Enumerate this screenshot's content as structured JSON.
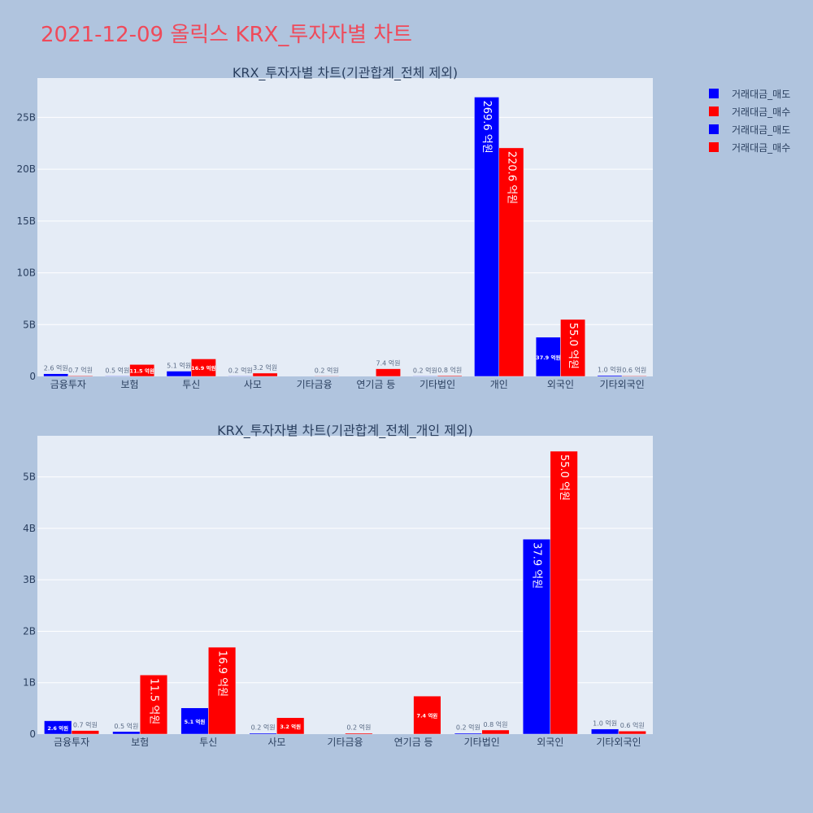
{
  "title": "2021-12-09 올릭스 KRX_투자자별 차트",
  "colors": {
    "sell": "#0000ff",
    "buy": "#ff0000",
    "plot_bg": "#e5ecf6",
    "page_bg": "#b0c4de",
    "title": "#ef4a5a"
  },
  "legend": [
    {
      "label": "거래대금_매도",
      "color": "#0000ff"
    },
    {
      "label": "거래대금_매수",
      "color": "#ff0000"
    },
    {
      "label": "거래대금_매도",
      "color": "#0000ff"
    },
    {
      "label": "거래대금_매수",
      "color": "#ff0000"
    }
  ],
  "chart_data": [
    {
      "type": "bar",
      "title": "KRX_투자자별 차트(기관합계_전체 제외)",
      "categories": [
        "금융투자",
        "보험",
        "투신",
        "사모",
        "기타금융",
        "연기금 등",
        "기타법인",
        "개인",
        "외국인",
        "기타외국인"
      ],
      "ylim": [
        0,
        28.8
      ],
      "y_ticks": [
        0,
        5,
        10,
        15,
        20,
        25
      ],
      "y_tick_labels": [
        "0",
        "5B",
        "10B",
        "15B",
        "20B",
        "25B"
      ],
      "series": [
        {
          "name": "거래대금_매도",
          "values": [
            0.26,
            0.05,
            0.51,
            0.02,
            null,
            null,
            0.02,
            26.96,
            3.79,
            0.1
          ],
          "labels": [
            "2.6 억원",
            "0.5 억원",
            "5.1 억원",
            "0.2 억원",
            "",
            "",
            "0.2 억원",
            "269.6 억원",
            "37.9 억원",
            "1.0 억원"
          ]
        },
        {
          "name": "거래대금_매수",
          "values": [
            0.07,
            1.15,
            1.69,
            0.32,
            0.02,
            0.74,
            0.08,
            22.06,
            5.5,
            0.06
          ],
          "labels": [
            "0.7 억원",
            "11.5 억원",
            "16.9 억원",
            "3.2 억원",
            "0.2 억원",
            "7.4 억원",
            "0.8 억원",
            "220.6 억원",
            "55.0 억원",
            "0.6 억원"
          ]
        }
      ]
    },
    {
      "type": "bar",
      "title": "KRX_투자자별 차트(기관합계_전체_개인 제외)",
      "categories": [
        "금융투자",
        "보험",
        "투신",
        "사모",
        "기타금융",
        "연기금 등",
        "기타법인",
        "외국인",
        "기타외국인"
      ],
      "ylim": [
        0,
        5.8
      ],
      "y_ticks": [
        0,
        1,
        2,
        3,
        4,
        5
      ],
      "y_tick_labels": [
        "0",
        "1B",
        "2B",
        "3B",
        "4B",
        "5B"
      ],
      "series": [
        {
          "name": "거래대금_매도",
          "values": [
            0.26,
            0.05,
            0.51,
            0.02,
            null,
            null,
            0.02,
            3.79,
            0.1
          ],
          "labels": [
            "2.6 억원",
            "0.5 억원",
            "5.1 억원",
            "0.2 억원",
            "",
            "",
            "0.2 억원",
            "37.9 억원",
            "1.0 억원"
          ]
        },
        {
          "name": "거래대금_매수",
          "values": [
            0.07,
            1.15,
            1.69,
            0.32,
            0.02,
            0.74,
            0.08,
            5.5,
            0.06
          ],
          "labels": [
            "0.7 억원",
            "11.5 억원",
            "16.9 억원",
            "3.2 억원",
            "0.2 억원",
            "7.4 억원",
            "0.8 억원",
            "55.0 억원",
            "0.6 억원"
          ]
        }
      ]
    }
  ]
}
